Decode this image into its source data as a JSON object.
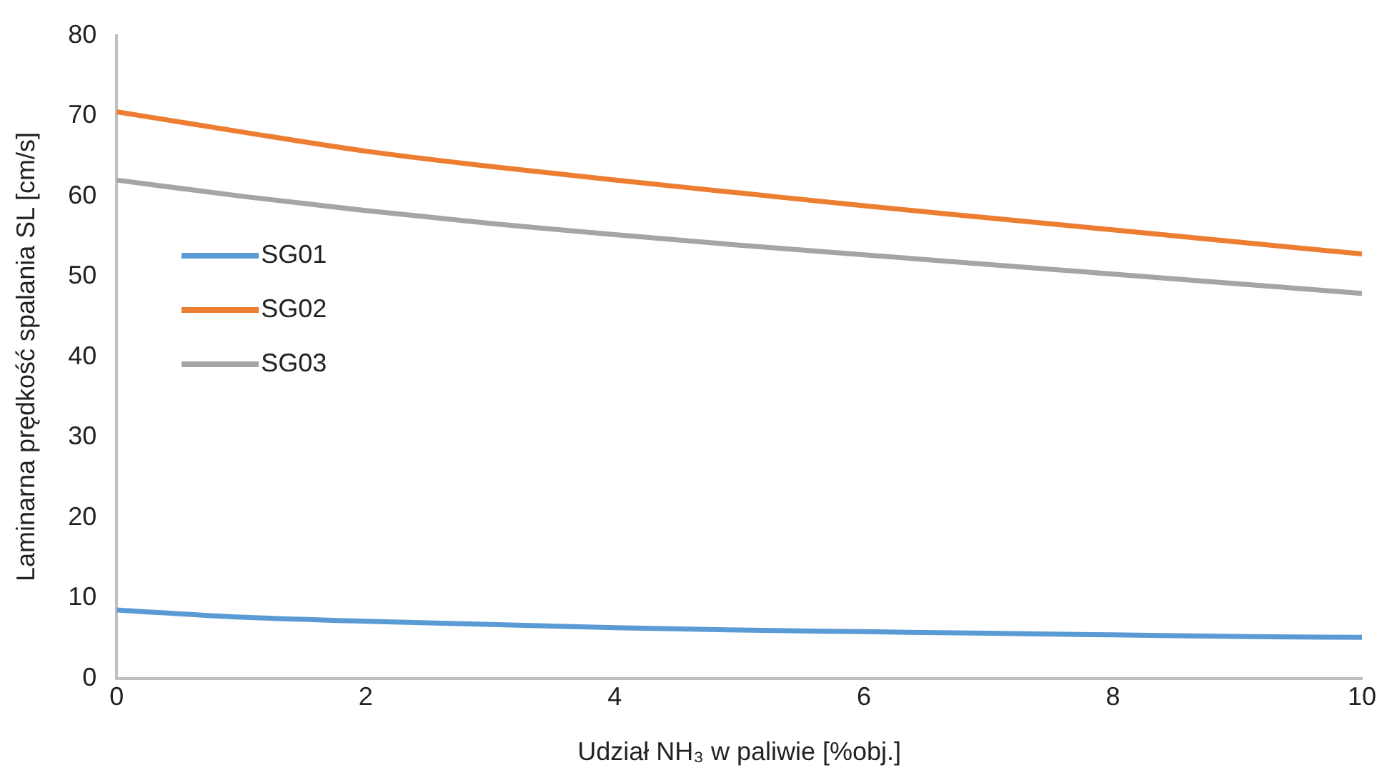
{
  "chart_data": {
    "type": "line",
    "xlabel": "Udział NH₃ w paliwie [%obj.]",
    "ylabel": "Laminarna prędkość spalania SL [cm/s]",
    "x": [
      0,
      1,
      2,
      3,
      4,
      5,
      6,
      7,
      8,
      9,
      10
    ],
    "xlim": [
      0,
      10
    ],
    "xticks": [
      0,
      2,
      4,
      6,
      8,
      10
    ],
    "ylim": [
      0,
      80
    ],
    "yticks": [
      0,
      10,
      20,
      30,
      40,
      50,
      60,
      70,
      80
    ],
    "grid": false,
    "legend": "left",
    "marker": "none",
    "series": [
      {
        "name": "SG01",
        "color": "#5b9bd5",
        "values": [
          8.5,
          7.6,
          7.1,
          6.7,
          6.3,
          6.0,
          5.8,
          5.6,
          5.4,
          5.2,
          5.1
        ]
      },
      {
        "name": "SG02",
        "color": "#ed7d31",
        "values": [
          70.5,
          68.0,
          65.6,
          63.7,
          62.0,
          60.4,
          58.8,
          57.3,
          55.8,
          54.3,
          52.8
        ]
      },
      {
        "name": "SG03",
        "color": "#a5a5a5",
        "values": [
          62.0,
          60.0,
          58.2,
          56.6,
          55.2,
          53.9,
          52.7,
          51.5,
          50.3,
          49.1,
          47.9
        ]
      }
    ]
  }
}
